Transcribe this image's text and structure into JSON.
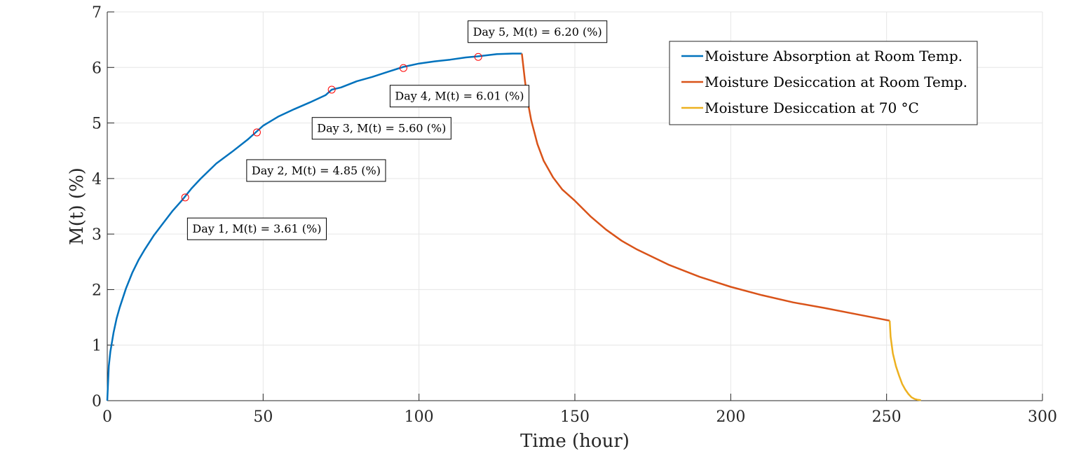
{
  "chart_data": {
    "type": "line",
    "xlabel": "Time (hour)",
    "ylabel": "M(t) (%)",
    "xlim": [
      0,
      300
    ],
    "ylim": [
      0,
      7
    ],
    "xticks": [
      0,
      50,
      100,
      150,
      200,
      250,
      300
    ],
    "yticks": [
      0,
      1,
      2,
      3,
      4,
      5,
      6,
      7
    ],
    "grid": true,
    "legend_position": "top-right",
    "series": [
      {
        "name": "Moisture Absorption at Room Temp.",
        "color": "#0072BD",
        "x": [
          0,
          0.5,
          1,
          2,
          3,
          4,
          6,
          8,
          10,
          12,
          15,
          18,
          21,
          24,
          27,
          30,
          35,
          40,
          45,
          48,
          50,
          55,
          60,
          65,
          70,
          72,
          75,
          80,
          85,
          90,
          95,
          100,
          105,
          110,
          115,
          119,
          125,
          130,
          133
        ],
        "y": [
          0,
          0.62,
          0.88,
          1.22,
          1.48,
          1.68,
          2.02,
          2.3,
          2.53,
          2.72,
          2.98,
          3.2,
          3.42,
          3.61,
          3.82,
          4.0,
          4.27,
          4.48,
          4.7,
          4.85,
          4.95,
          5.12,
          5.25,
          5.37,
          5.5,
          5.6,
          5.64,
          5.75,
          5.83,
          5.92,
          6.01,
          6.07,
          6.11,
          6.14,
          6.18,
          6.2,
          6.24,
          6.25,
          6.25
        ]
      },
      {
        "name": "Moisture Desiccation at Room Temp.",
        "color": "#D95319",
        "x": [
          133,
          134,
          135,
          136,
          138,
          140,
          143,
          146,
          150,
          155,
          160,
          165,
          170,
          180,
          190,
          200,
          210,
          220,
          230,
          240,
          251
        ],
        "y": [
          6.25,
          5.75,
          5.35,
          5.05,
          4.62,
          4.32,
          4.02,
          3.8,
          3.6,
          3.32,
          3.08,
          2.88,
          2.72,
          2.45,
          2.23,
          2.05,
          1.9,
          1.77,
          1.67,
          1.56,
          1.44
        ]
      },
      {
        "name": "Moisture Desiccation at 70 °C",
        "color": "#EDB120",
        "x": [
          251,
          251.3,
          252,
          253,
          254,
          255,
          256,
          257,
          258,
          259,
          260,
          261
        ],
        "y": [
          1.44,
          1.15,
          0.85,
          0.62,
          0.45,
          0.3,
          0.2,
          0.12,
          0.06,
          0.03,
          0.015,
          0.01
        ]
      }
    ],
    "markers": [
      {
        "x": 25,
        "y": 3.66
      },
      {
        "x": 48,
        "y": 4.83
      },
      {
        "x": 72,
        "y": 5.6
      },
      {
        "x": 95,
        "y": 5.99
      },
      {
        "x": 119,
        "y": 6.19
      }
    ],
    "marker_color": "#FF0000",
    "annotations": [
      {
        "text": "Day 1, M(t) = 3.61 (%)",
        "x": 48,
        "y": 3.1
      },
      {
        "text": "Day 2, M(t) = 4.85 (%)",
        "x": 67,
        "y": 4.15
      },
      {
        "text": "Day 3, M(t) = 5.60 (%)",
        "x": 88,
        "y": 4.91
      },
      {
        "text": "Day 4, M(t) = 6.01 (%)",
        "x": 113,
        "y": 5.49
      },
      {
        "text": "Day 5, M(t) = 6.20 (%)",
        "x": 138,
        "y": 6.65
      }
    ]
  }
}
